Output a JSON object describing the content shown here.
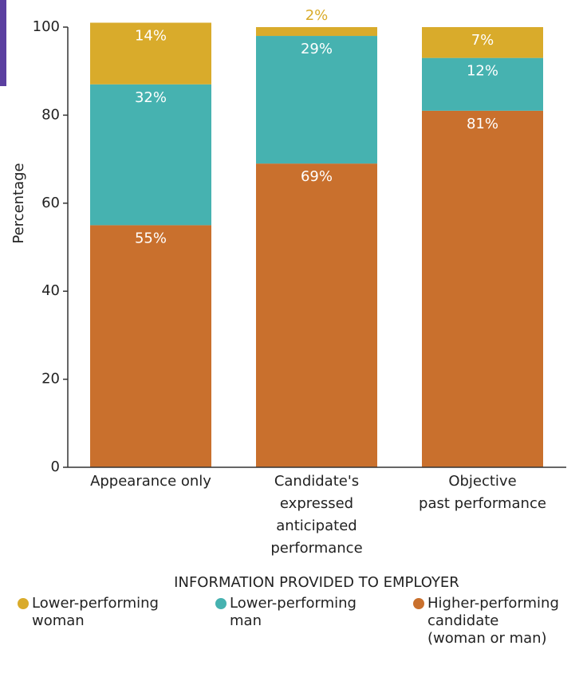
{
  "chart_data": {
    "type": "stacked-bar",
    "ylabel": "Percentage",
    "xlabel": "INFORMATION PROVIDED TO EMPLOYER",
    "categories": [
      "Appearance only",
      "Candidate's\nexpressed\nanticipated\nperformance",
      "Objective\npast performance"
    ],
    "series": [
      {
        "name": "Lower-performing\nwoman",
        "color": "#d9ab2b",
        "values": [
          14,
          2,
          7
        ],
        "value_labels": [
          "14%",
          "2%",
          "7%"
        ]
      },
      {
        "name": "Lower-performing\nman",
        "color": "#46b2b0",
        "values": [
          32,
          29,
          12
        ],
        "value_labels": [
          "32%",
          "29%",
          "12%"
        ]
      },
      {
        "name": "Higher-performing\ncandidate\n(woman or man)",
        "color": "#c9702d",
        "values": [
          55,
          69,
          81
        ],
        "value_labels": [
          "55%",
          "69%",
          "81%"
        ]
      }
    ],
    "ylim": [
      0,
      100
    ],
    "yticks": [
      0,
      20,
      40,
      60,
      80,
      100
    ]
  }
}
